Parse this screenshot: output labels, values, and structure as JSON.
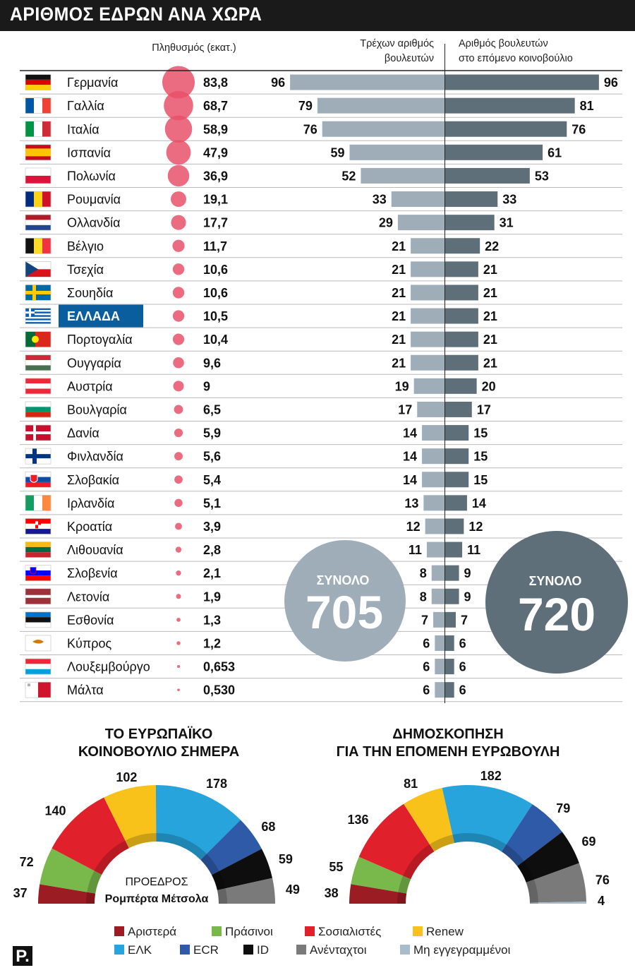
{
  "title": "ΑΡΙΘΜΟΣ ΕΔΡΩΝ ΑΝΑ ΧΩΡΑ",
  "headers": {
    "population": "Πληθυσμός (εκατ.)",
    "current_line1": "Τρέχων αριθμός",
    "current_line2": "βουλευτών",
    "next_line1": "Αριθμός βουλευτών",
    "next_line2": "στο επόμενο κοινοβούλιο"
  },
  "colors": {
    "bubble": "#e8516a",
    "current_bar": "#9fadb8",
    "next_bar": "#5e6f7a",
    "highlight": "#0a5e9e",
    "title_bg": "#1a1a1a"
  },
  "chart_data": [
    {
      "type": "bar",
      "title": "ΑΡΙΘΜΟΣ ΕΔΡΩΝ ΑΝΑ ΧΩΡΑ",
      "highlight": "ΕΛΛΑΔΑ",
      "countries": [
        {
          "name": "Γερμανία",
          "flag": "germany-flag",
          "population": "83,8",
          "pop_value": 83.8,
          "current": 96,
          "next": 96
        },
        {
          "name": "Γαλλία",
          "flag": "france-flag",
          "population": "68,7",
          "pop_value": 68.7,
          "current": 79,
          "next": 81
        },
        {
          "name": "Ιταλία",
          "flag": "italy-flag",
          "population": "58,9",
          "pop_value": 58.9,
          "current": 76,
          "next": 76
        },
        {
          "name": "Ισπανία",
          "flag": "spain-flag",
          "population": "47,9",
          "pop_value": 47.9,
          "current": 59,
          "next": 61
        },
        {
          "name": "Πολωνία",
          "flag": "poland-flag",
          "population": "36,9",
          "pop_value": 36.9,
          "current": 52,
          "next": 53
        },
        {
          "name": "Ρουμανία",
          "flag": "romania-flag",
          "population": "19,1",
          "pop_value": 19.1,
          "current": 33,
          "next": 33
        },
        {
          "name": "Ολλανδία",
          "flag": "netherlands-flag",
          "population": "17,7",
          "pop_value": 17.7,
          "current": 29,
          "next": 31
        },
        {
          "name": "Βέλγιο",
          "flag": "belgium-flag",
          "population": "11,7",
          "pop_value": 11.7,
          "current": 21,
          "next": 22
        },
        {
          "name": "Τσεχία",
          "flag": "czechia-flag",
          "population": "10,6",
          "pop_value": 10.6,
          "current": 21,
          "next": 21
        },
        {
          "name": "Σουηδία",
          "flag": "sweden-flag",
          "population": "10,6",
          "pop_value": 10.6,
          "current": 21,
          "next": 21
        },
        {
          "name": "ΕΛΛΑΔΑ",
          "flag": "greece-flag",
          "population": "10,5",
          "pop_value": 10.5,
          "current": 21,
          "next": 21
        },
        {
          "name": "Πορτογαλία",
          "flag": "portugal-flag",
          "population": "10,4",
          "pop_value": 10.4,
          "current": 21,
          "next": 21
        },
        {
          "name": "Ουγγαρία",
          "flag": "hungary-flag",
          "population": "9,6",
          "pop_value": 9.6,
          "current": 21,
          "next": 21
        },
        {
          "name": "Αυστρία",
          "flag": "austria-flag",
          "population": "9",
          "pop_value": 9,
          "current": 19,
          "next": 20
        },
        {
          "name": "Βουλγαρία",
          "flag": "bulgaria-flag",
          "population": "6,5",
          "pop_value": 6.5,
          "current": 17,
          "next": 17
        },
        {
          "name": "Δανία",
          "flag": "denmark-flag",
          "population": "5,9",
          "pop_value": 5.9,
          "current": 14,
          "next": 15
        },
        {
          "name": "Φινλανδία",
          "flag": "finland-flag",
          "population": "5,6",
          "pop_value": 5.6,
          "current": 14,
          "next": 15
        },
        {
          "name": "Σλοβακία",
          "flag": "slovakia-flag",
          "population": "5,4",
          "pop_value": 5.4,
          "current": 14,
          "next": 15
        },
        {
          "name": "Ιρλανδία",
          "flag": "ireland-flag",
          "population": "5,1",
          "pop_value": 5.1,
          "current": 13,
          "next": 14
        },
        {
          "name": "Κροατία",
          "flag": "croatia-flag",
          "population": "3,9",
          "pop_value": 3.9,
          "current": 12,
          "next": 12
        },
        {
          "name": "Λιθουανία",
          "flag": "lithuania-flag",
          "population": "2,8",
          "pop_value": 2.8,
          "current": 11,
          "next": 11
        },
        {
          "name": "Σλοβενία",
          "flag": "slovenia-flag",
          "population": "2,1",
          "pop_value": 2.1,
          "current": 8,
          "next": 9
        },
        {
          "name": "Λετονία",
          "flag": "latvia-flag",
          "population": "1,9",
          "pop_value": 1.9,
          "current": 8,
          "next": 9
        },
        {
          "name": "Εσθονία",
          "flag": "estonia-flag",
          "population": "1,3",
          "pop_value": 1.3,
          "current": 7,
          "next": 7
        },
        {
          "name": "Κύπρος",
          "flag": "cyprus-flag",
          "population": "1,2",
          "pop_value": 1.2,
          "current": 6,
          "next": 6
        },
        {
          "name": "Λουξεμβούργο",
          "flag": "luxembourg-flag",
          "population": "0,653",
          "pop_value": 0.653,
          "current": 6,
          "next": 6
        },
        {
          "name": "Μάλτα",
          "flag": "malta-flag",
          "population": "0,530",
          "pop_value": 0.53,
          "current": 6,
          "next": 6
        }
      ],
      "totals": [
        {
          "label": "ΣΥΝΟΛΟ",
          "value": "705"
        },
        {
          "label": "ΣΥΝΟΛΟ",
          "value": "720"
        }
      ]
    },
    {
      "type": "pie",
      "subtype": "parliament-hemicycle",
      "title": "ΤΟ ΕΥΡΩΠΑΪΚΟ ΚΟΙΝΟΒΟΥΛΙΟ ΣΗΜΕΡΑ",
      "title_line1": "ΤΟ ΕΥΡΩΠΑΪΚΟ",
      "title_line2": "ΚΟΙΝΟΒΟΥΛΙΟ ΣΗΜΕΡΑ",
      "center_line1": "ΠΡΟΕΔΡΟΣ",
      "center_line2": "Ρομπέρτα Μέτσολα",
      "groups": [
        "Αριστερά",
        "Πράσινοι",
        "Σοσιαλιστές",
        "Renew",
        "ΕΛΚ",
        "ECR",
        "ID",
        "Ανένταχτοι"
      ],
      "values": [
        37,
        72,
        140,
        102,
        178,
        68,
        59,
        49
      ]
    },
    {
      "type": "pie",
      "subtype": "parliament-hemicycle",
      "title": "ΔΗΜΟΣΚΟΠΗΣΗ ΓΙΑ ΤΗΝ ΕΠΟΜΕΝΗ ΕΥΡΩΒΟΥΛΗ",
      "title_line1": "ΔΗΜΟΣΚΟΠΗΣΗ",
      "title_line2": "ΓΙΑ ΤΗΝ ΕΠΟΜΕΝΗ ΕΥΡΩΒΟΥΛΗ",
      "groups": [
        "Αριστερά",
        "Πράσινοι",
        "Σοσιαλιστές",
        "Renew",
        "ΕΛΚ",
        "ECR",
        "ID",
        "Ανένταχτοι",
        "Μη εγγεγραμμένοι"
      ],
      "values": [
        38,
        55,
        136,
        81,
        182,
        79,
        69,
        76,
        4
      ]
    }
  ],
  "legend": [
    {
      "label": "Αριστερά",
      "color": "#9b1c22"
    },
    {
      "label": "Πράσινοι",
      "color": "#79b84a"
    },
    {
      "label": "Σοσιαλιστές",
      "color": "#e0202a"
    },
    {
      "label": "Renew",
      "color": "#f8c21a"
    },
    {
      "label": "ΕΛΚ",
      "color": "#27a4dc"
    },
    {
      "label": "ECR",
      "color": "#2f5aa8"
    },
    {
      "label": "ID",
      "color": "#0e0e0e"
    },
    {
      "label": "Ανένταχτοι",
      "color": "#7a7a7a"
    },
    {
      "label": "Μη εγγεγραμμένοι",
      "color": "#a9bccb"
    }
  ],
  "logo": "P."
}
